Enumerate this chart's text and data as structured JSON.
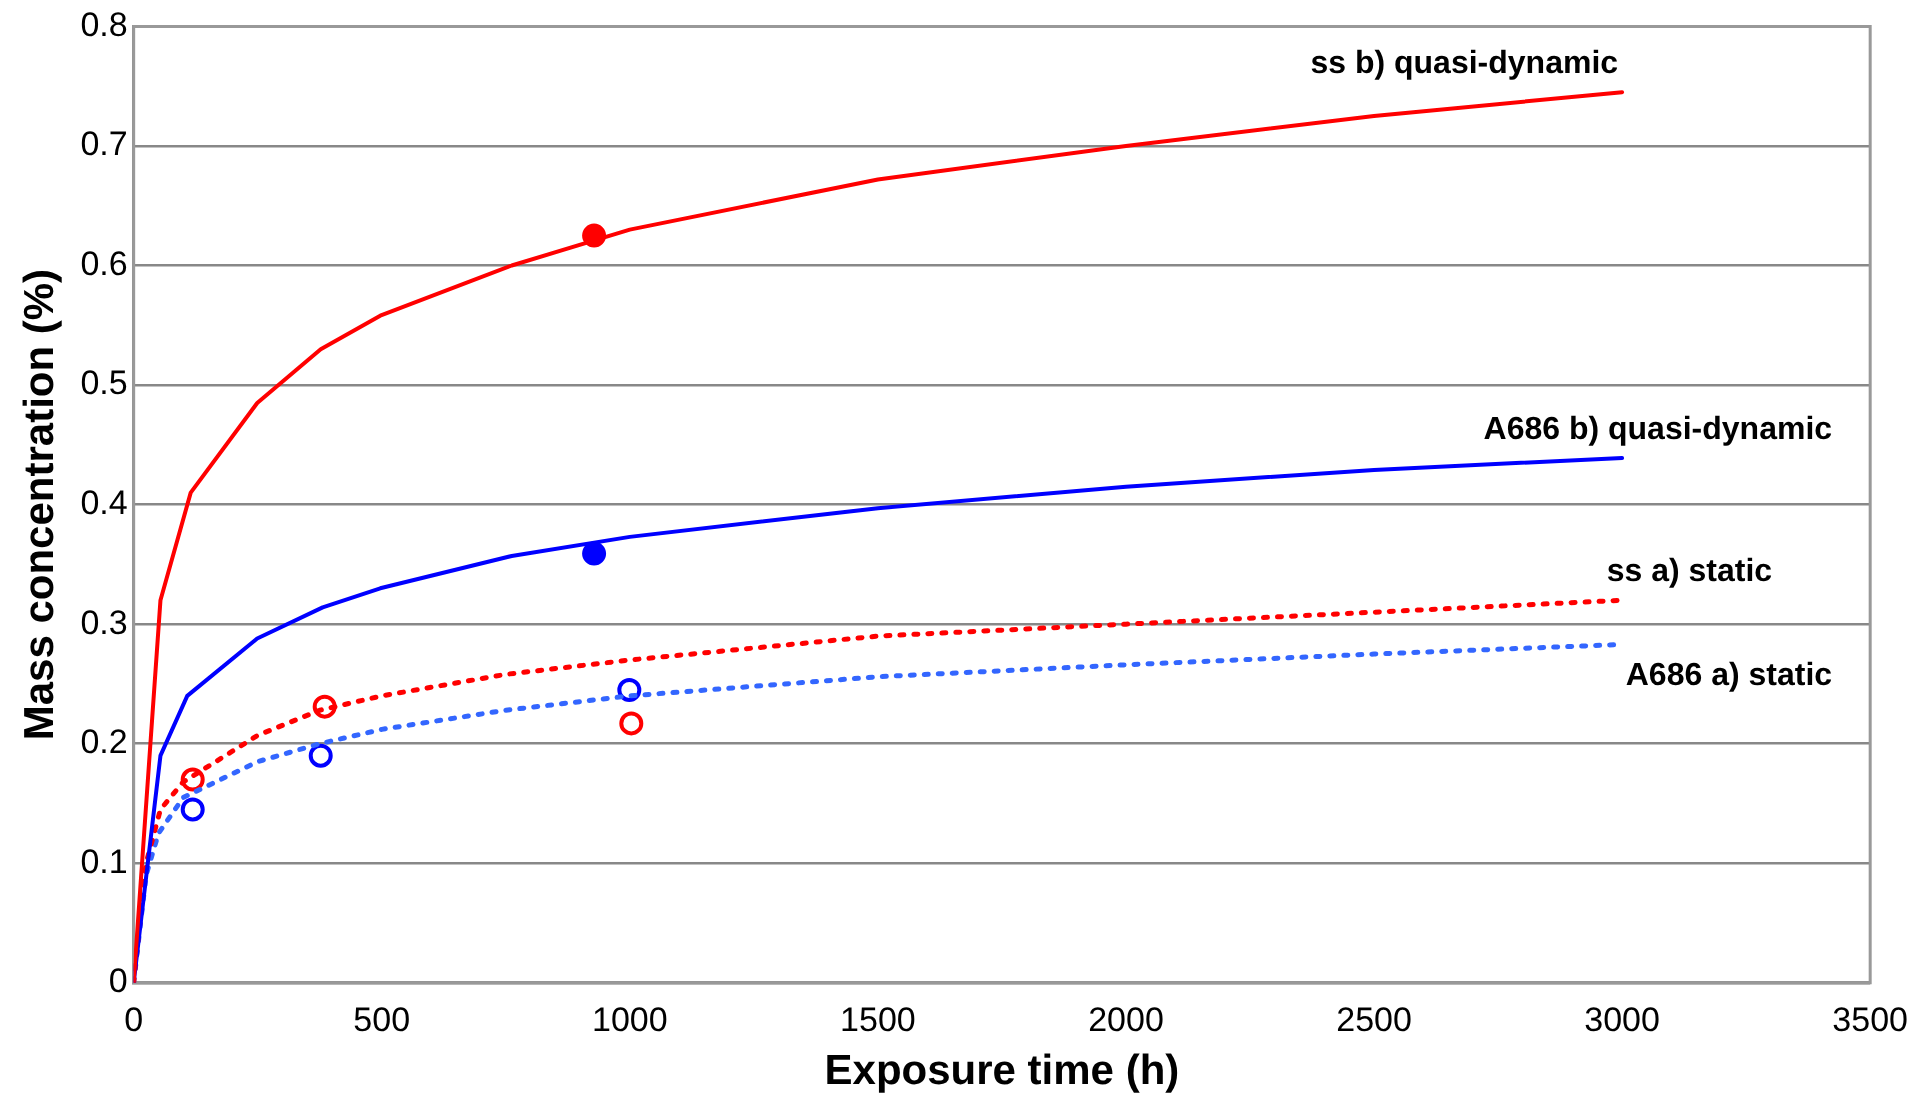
{
  "chart_data": {
    "type": "line",
    "xlabel": "Exposure time (h)",
    "ylabel": "Mass concentration (%)",
    "xlim": [
      0,
      3500
    ],
    "xticks": [
      0,
      500,
      1000,
      1500,
      2000,
      2500,
      3000,
      3500
    ],
    "ylim": [
      0,
      0.8
    ],
    "yticks": [
      0,
      0.1,
      0.2,
      0.3,
      0.4,
      0.5,
      0.6,
      0.7,
      0.8
    ],
    "grid": "y",
    "legend": false,
    "marker": "none",
    "series": [
      {
        "name": "ss b) quasi-dynamic",
        "line_style": "solid",
        "color": "#ff0000",
        "x": [
          0,
          54,
          115,
          249,
          377,
          497,
          762,
          1000,
          1500,
          2000,
          2500,
          3000
        ],
        "values": [
          0,
          0.32,
          0.41,
          0.485,
          0.53,
          0.558,
          0.6,
          0.63,
          0.672,
          0.7,
          0.725,
          0.745
        ]
      },
      {
        "name": "A686 b) quasi-dynamic",
        "line_style": "solid",
        "color": "#0000ff",
        "x": [
          0,
          54,
          108,
          249,
          381,
          497,
          762,
          1000,
          1500,
          2000,
          2500,
          3000
        ],
        "values": [
          0,
          0.19,
          0.24,
          0.288,
          0.314,
          0.33,
          0.357,
          0.373,
          0.397,
          0.415,
          0.429,
          0.439
        ]
      },
      {
        "name": "ss a) static",
        "line_style": "dotted",
        "color": "#ff0000",
        "x": [
          0,
          25,
          54,
          100,
          250,
          375,
          500,
          750,
          1000,
          1500,
          2000,
          2500,
          3000
        ],
        "values": [
          0,
          0.1,
          0.145,
          0.168,
          0.207,
          0.228,
          0.24,
          0.258,
          0.27,
          0.29,
          0.3,
          0.31,
          0.32
        ]
      },
      {
        "name": "A686 a) static",
        "line_style": "dotted",
        "color": "#3366ff",
        "x": [
          0,
          25,
          50,
          100,
          250,
          375,
          500,
          750,
          1000,
          1500,
          2000,
          2500,
          3000
        ],
        "values": [
          0,
          0.09,
          0.125,
          0.155,
          0.185,
          0.2,
          0.212,
          0.228,
          0.24,
          0.256,
          0.266,
          0.275,
          0.283
        ]
      },
      {
        "type": "scatter",
        "marker": "circle",
        "color": "#ff0000",
        "x": [
          928
        ],
        "values": [
          0.625
        ]
      },
      {
        "type": "scatter",
        "marker": "circle",
        "color": "#0000ff",
        "x": [
          928
        ],
        "values": [
          0.359
        ]
      },
      {
        "type": "scatter",
        "marker": "circle",
        "color": "#ff0000",
        "x": [
          119,
          385,
          1003
        ],
        "values": [
          0.17,
          0.231,
          0.217
        ]
      },
      {
        "type": "scatter",
        "marker": "circle",
        "color": "#0000ff",
        "x": [
          119,
          377,
          999
        ],
        "values": [
          0.145,
          0.19,
          0.245
        ]
      }
    ]
  }
}
